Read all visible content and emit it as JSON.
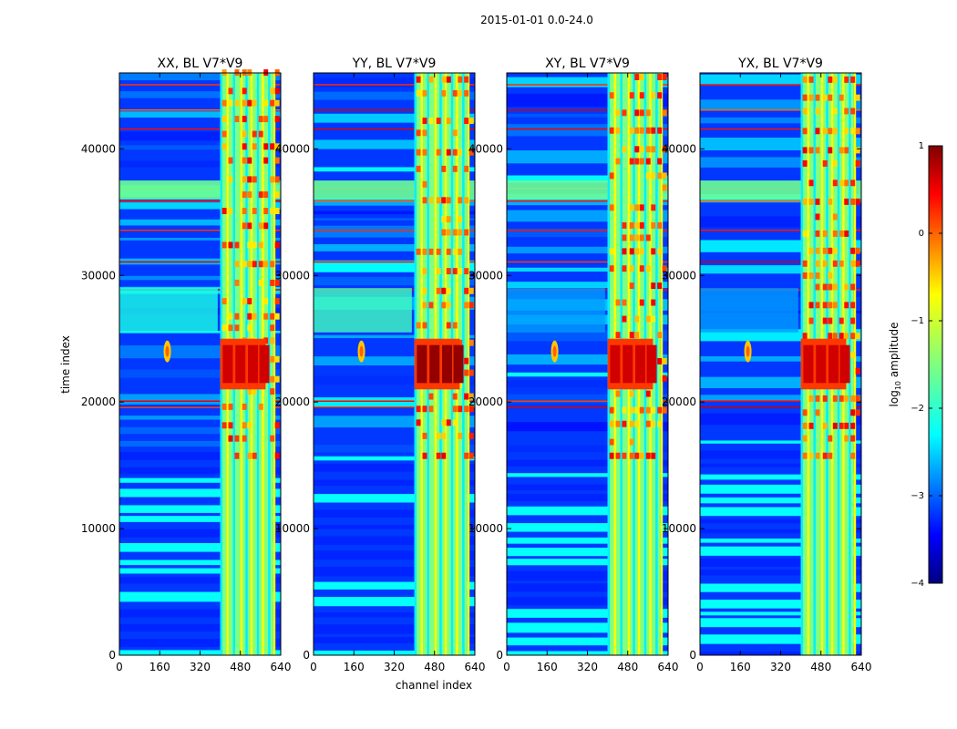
{
  "figure": {
    "suptitle": "2015-01-01 0.0-24.0"
  },
  "chart_data": {
    "type": "heatmap",
    "colormap": "jet",
    "xlabel": "channel index",
    "ylabel": "time index",
    "xlim": [
      0,
      640
    ],
    "ylim": [
      0,
      46000
    ],
    "xticks": [
      0,
      160,
      320,
      480,
      640
    ],
    "yticks": [
      0,
      10000,
      20000,
      30000,
      40000
    ],
    "panels": [
      {
        "title": "XX, BL V7*V9",
        "pol": "XX"
      },
      {
        "title": "YY, BL V7*V9",
        "pol": "YY"
      },
      {
        "title": "XY, BL V7*V9",
        "pol": "XY"
      },
      {
        "title": "YX, BL V7*V9",
        "pol": "YX"
      }
    ],
    "colorbar": {
      "label_main": "log",
      "label_sub": "10",
      "label_rest": " amplitude",
      "vmin": -4,
      "vmax": 1,
      "ticks": [
        1,
        0,
        -1,
        -2,
        -3,
        -4
      ],
      "tick_labels": [
        "1",
        "0",
        "−1",
        "−2",
        "−3",
        "−4"
      ]
    },
    "features": {
      "rfi_band_channels": [
        400,
        610
      ],
      "dense_horizontal_banding_below_time": 15500,
      "strong_burst_time_range": [
        21000,
        25000
      ],
      "strong_burst_channels": [
        400,
        580
      ],
      "spot_channel": 190,
      "spot_time": 24000
    }
  }
}
